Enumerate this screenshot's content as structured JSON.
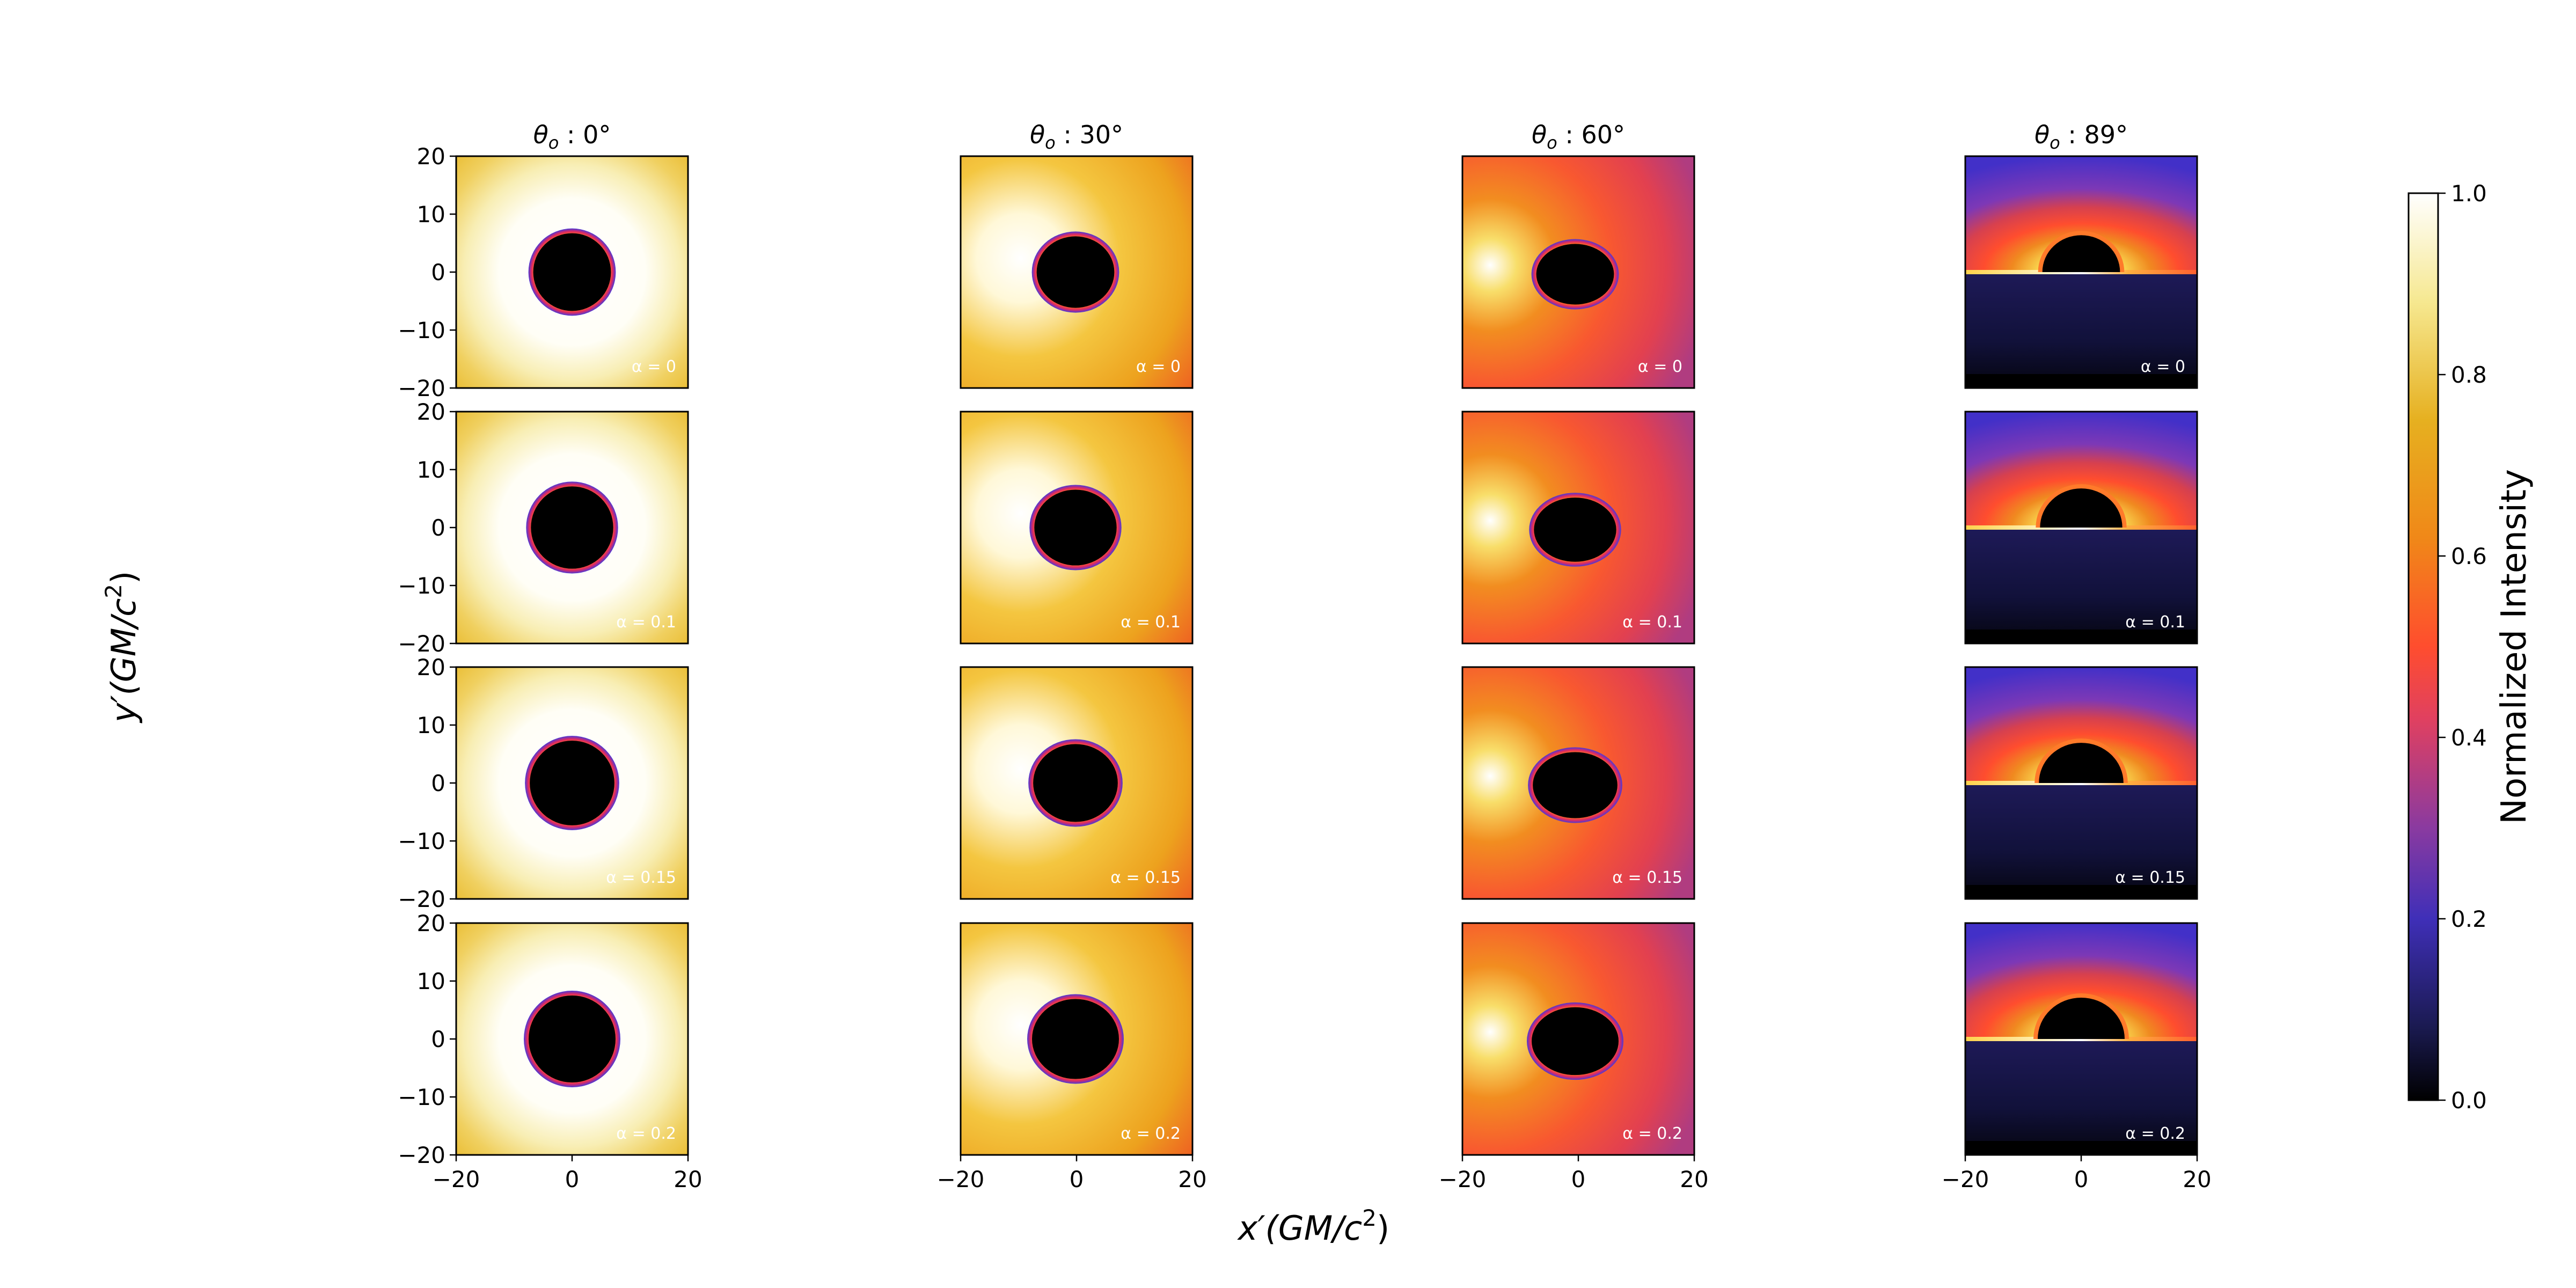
{
  "chart_data": {
    "type": "heatmap",
    "colormap": "CMRmap",
    "columns": [
      {
        "title": "θ",
        "title_sub": "o",
        "title_value": " : 0°",
        "inclination_deg": 0
      },
      {
        "title": "θ",
        "title_sub": "o",
        "title_value": " : 30°",
        "inclination_deg": 30
      },
      {
        "title": "θ",
        "title_sub": "o",
        "title_value": " : 60°",
        "inclination_deg": 60
      },
      {
        "title": "θ",
        "title_sub": "o",
        "title_value": " : 89°",
        "inclination_deg": 89
      }
    ],
    "rows": [
      {
        "label": "α = 0",
        "alpha": 0
      },
      {
        "label": "α = 0.1",
        "alpha": 0.1
      },
      {
        "label": "α = 0.15",
        "alpha": 0.15
      },
      {
        "label": "α = 0.2",
        "alpha": 0.2
      }
    ],
    "xlabel": {
      "main": "x′(GM/c",
      "sup": "2",
      "end": ")"
    },
    "ylabel": {
      "main": "y′(GM/c",
      "sup": "2",
      "end": ")"
    },
    "xlim": [
      -20,
      20
    ],
    "ylim": [
      -20,
      20
    ],
    "xticks": [
      "−20",
      "0",
      "20"
    ],
    "yticks": [
      "20",
      "10",
      "0",
      "−10",
      "−20"
    ],
    "colorbar": {
      "label": "Normalized Intensity",
      "range": [
        0.0,
        1.0
      ],
      "ticks": [
        "0.0",
        "0.2",
        "0.4",
        "0.6",
        "0.8",
        "1.0"
      ]
    }
  }
}
